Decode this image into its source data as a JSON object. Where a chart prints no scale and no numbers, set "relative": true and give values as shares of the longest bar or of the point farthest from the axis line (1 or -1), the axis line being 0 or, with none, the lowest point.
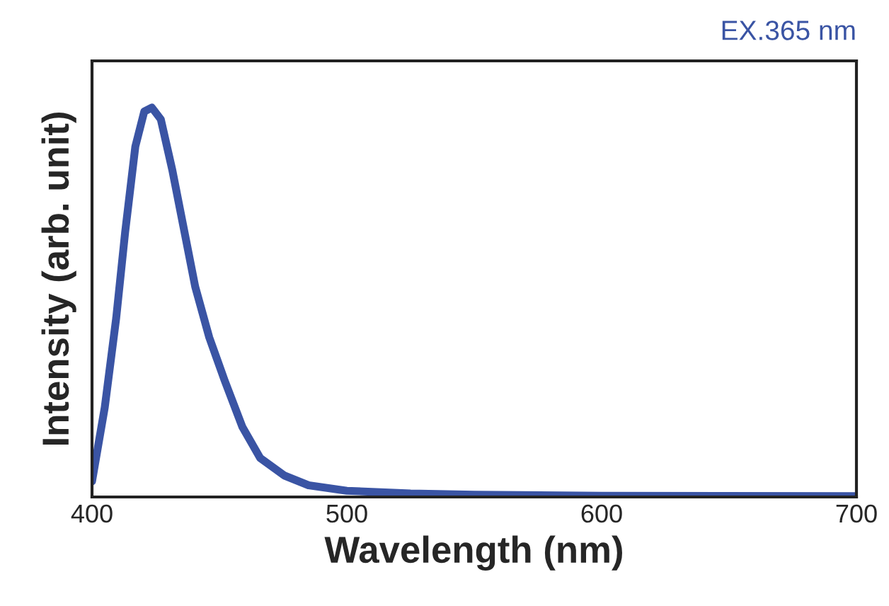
{
  "chart_data": {
    "type": "line",
    "relative": true,
    "xlabel": "Wavelength (nm)",
    "ylabel": "Intensity (arb. unit)",
    "annotations": [
      "EX.365 nm"
    ],
    "xlim": [
      400,
      700
    ],
    "xticks": [
      400,
      500,
      600,
      700
    ],
    "series": [
      {
        "color": "#3a54a4",
        "x": [
          400,
          405,
          409.5,
          413,
          417,
          420.5,
          423.5,
          427,
          431.5,
          436,
          440.5,
          446,
          452,
          459,
          466,
          475.5,
          485,
          500,
          525,
          550,
          600,
          700
        ],
        "values": [
          0.04,
          0.23,
          0.46,
          0.68,
          0.9,
          0.99,
          1.0,
          0.97,
          0.84,
          0.69,
          0.54,
          0.41,
          0.3,
          0.18,
          0.1,
          0.055,
          0.03,
          0.016,
          0.009,
          0.006,
          0.003,
          0.002
        ]
      }
    ]
  }
}
